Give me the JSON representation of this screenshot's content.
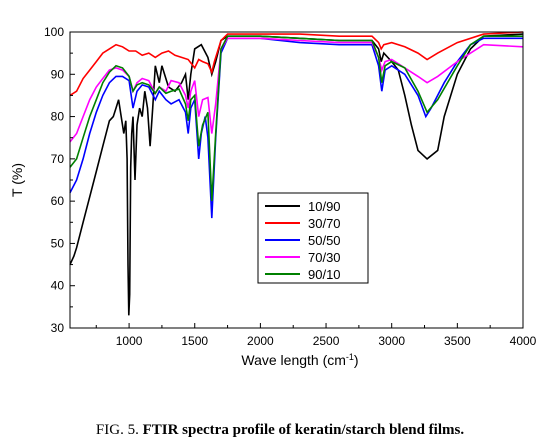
{
  "caption": {
    "prefix": "FIG. 5.",
    "title": "FTIR spectra profile of keratin/starch blend films."
  },
  "chart_data": {
    "type": "line",
    "xlabel": "Wave length (cm",
    "xlabel_sup": "-1",
    "xlabel_suffix": ")",
    "ylabel": "T (%)",
    "xlim": [
      550,
      4000
    ],
    "ylim": [
      30,
      100
    ],
    "xticks": [
      1000,
      1500,
      2000,
      2500,
      3000,
      3500,
      4000
    ],
    "yticks": [
      30,
      40,
      50,
      60,
      70,
      80,
      90,
      100
    ],
    "grid": false,
    "legend_position": "center",
    "series": [
      {
        "name": "10/90",
        "color": "#000000",
        "points": [
          [
            550,
            45
          ],
          [
            580,
            47
          ],
          [
            600,
            49
          ],
          [
            650,
            55
          ],
          [
            700,
            61
          ],
          [
            750,
            67
          ],
          [
            800,
            73
          ],
          [
            850,
            79
          ],
          [
            880,
            80
          ],
          [
            900,
            82
          ],
          [
            920,
            84
          ],
          [
            940,
            80
          ],
          [
            960,
            76
          ],
          [
            975,
            79
          ],
          [
            985,
            70
          ],
          [
            992,
            45
          ],
          [
            998,
            33
          ],
          [
            1005,
            38
          ],
          [
            1012,
            68
          ],
          [
            1020,
            76
          ],
          [
            1030,
            80
          ],
          [
            1045,
            65
          ],
          [
            1060,
            78
          ],
          [
            1080,
            82
          ],
          [
            1100,
            80
          ],
          [
            1120,
            86
          ],
          [
            1140,
            82
          ],
          [
            1160,
            73
          ],
          [
            1180,
            82
          ],
          [
            1200,
            92
          ],
          [
            1230,
            88
          ],
          [
            1250,
            92
          ],
          [
            1300,
            87
          ],
          [
            1350,
            86
          ],
          [
            1400,
            88
          ],
          [
            1430,
            90
          ],
          [
            1450,
            84
          ],
          [
            1470,
            90
          ],
          [
            1500,
            96
          ],
          [
            1550,
            97
          ],
          [
            1600,
            94
          ],
          [
            1630,
            90
          ],
          [
            1660,
            93
          ],
          [
            1700,
            98
          ],
          [
            1750,
            99
          ],
          [
            2000,
            99
          ],
          [
            2300,
            98.5
          ],
          [
            2600,
            98
          ],
          [
            2850,
            98
          ],
          [
            2900,
            96
          ],
          [
            2920,
            93
          ],
          [
            2940,
            95
          ],
          [
            3000,
            93
          ],
          [
            3050,
            91
          ],
          [
            3100,
            85
          ],
          [
            3150,
            78
          ],
          [
            3200,
            72
          ],
          [
            3270,
            70
          ],
          [
            3350,
            72
          ],
          [
            3400,
            80
          ],
          [
            3500,
            90
          ],
          [
            3600,
            96
          ],
          [
            3700,
            99
          ],
          [
            4000,
            99.5
          ]
        ]
      },
      {
        "name": "30/70",
        "color": "#ff0000",
        "points": [
          [
            550,
            85
          ],
          [
            600,
            86
          ],
          [
            650,
            89
          ],
          [
            700,
            91
          ],
          [
            750,
            93
          ],
          [
            800,
            95
          ],
          [
            850,
            96
          ],
          [
            900,
            97
          ],
          [
            950,
            96.5
          ],
          [
            1000,
            95.5
          ],
          [
            1050,
            95.5
          ],
          [
            1100,
            94.5
          ],
          [
            1150,
            95
          ],
          [
            1200,
            94
          ],
          [
            1250,
            95
          ],
          [
            1300,
            95.5
          ],
          [
            1350,
            94.5
          ],
          [
            1400,
            94
          ],
          [
            1450,
            93.5
          ],
          [
            1500,
            91.5
          ],
          [
            1530,
            93.5
          ],
          [
            1560,
            93
          ],
          [
            1600,
            92.5
          ],
          [
            1630,
            90.5
          ],
          [
            1650,
            93
          ],
          [
            1700,
            98
          ],
          [
            1750,
            99.5
          ],
          [
            2000,
            99.5
          ],
          [
            2300,
            99.5
          ],
          [
            2600,
            99
          ],
          [
            2850,
            99
          ],
          [
            2900,
            97.5
          ],
          [
            2920,
            96
          ],
          [
            2940,
            97
          ],
          [
            3000,
            97.5
          ],
          [
            3100,
            96.5
          ],
          [
            3200,
            95
          ],
          [
            3270,
            93.5
          ],
          [
            3350,
            95
          ],
          [
            3500,
            97.5
          ],
          [
            3700,
            99.5
          ],
          [
            4000,
            100
          ]
        ]
      },
      {
        "name": "50/50",
        "color": "#0000ff",
        "points": [
          [
            550,
            62
          ],
          [
            600,
            65
          ],
          [
            650,
            70
          ],
          [
            700,
            76
          ],
          [
            750,
            81
          ],
          [
            800,
            85
          ],
          [
            850,
            88
          ],
          [
            900,
            89.5
          ],
          [
            950,
            89.5
          ],
          [
            1000,
            88.5
          ],
          [
            1030,
            82
          ],
          [
            1060,
            86
          ],
          [
            1100,
            87.5
          ],
          [
            1150,
            87
          ],
          [
            1200,
            84
          ],
          [
            1230,
            86
          ],
          [
            1280,
            84
          ],
          [
            1320,
            83
          ],
          [
            1380,
            84
          ],
          [
            1430,
            81
          ],
          [
            1450,
            76
          ],
          [
            1470,
            82
          ],
          [
            1500,
            84
          ],
          [
            1530,
            70
          ],
          [
            1550,
            76
          ],
          [
            1580,
            80
          ],
          [
            1600,
            75
          ],
          [
            1630,
            56
          ],
          [
            1660,
            75
          ],
          [
            1700,
            95
          ],
          [
            1750,
            98.5
          ],
          [
            2000,
            98.5
          ],
          [
            2300,
            97.5
          ],
          [
            2600,
            97
          ],
          [
            2850,
            97
          ],
          [
            2900,
            92
          ],
          [
            2925,
            86
          ],
          [
            2950,
            91
          ],
          [
            3000,
            92
          ],
          [
            3100,
            90
          ],
          [
            3200,
            85
          ],
          [
            3260,
            80
          ],
          [
            3300,
            82
          ],
          [
            3400,
            88
          ],
          [
            3500,
            93
          ],
          [
            3600,
            97
          ],
          [
            3700,
            98.5
          ],
          [
            4000,
            98.5
          ]
        ]
      },
      {
        "name": "70/30",
        "color": "#ff00ff",
        "points": [
          [
            550,
            74
          ],
          [
            600,
            76
          ],
          [
            650,
            80
          ],
          [
            700,
            84
          ],
          [
            750,
            87
          ],
          [
            800,
            89
          ],
          [
            850,
            91
          ],
          [
            900,
            91.5
          ],
          [
            950,
            91
          ],
          [
            1000,
            89.5
          ],
          [
            1030,
            86
          ],
          [
            1060,
            88
          ],
          [
            1100,
            89
          ],
          [
            1150,
            88.5
          ],
          [
            1200,
            85.5
          ],
          [
            1230,
            87
          ],
          [
            1280,
            86
          ],
          [
            1320,
            88.5
          ],
          [
            1380,
            88
          ],
          [
            1430,
            85
          ],
          [
            1450,
            82
          ],
          [
            1470,
            86
          ],
          [
            1500,
            88.5
          ],
          [
            1530,
            80
          ],
          [
            1560,
            84
          ],
          [
            1600,
            84.5
          ],
          [
            1630,
            76
          ],
          [
            1660,
            83
          ],
          [
            1700,
            96
          ],
          [
            1750,
            98.5
          ],
          [
            2000,
            98.5
          ],
          [
            2300,
            98
          ],
          [
            2600,
            97.5
          ],
          [
            2850,
            97.5
          ],
          [
            2900,
            94
          ],
          [
            2925,
            91
          ],
          [
            2950,
            93
          ],
          [
            3000,
            93.5
          ],
          [
            3100,
            91.5
          ],
          [
            3200,
            89.5
          ],
          [
            3270,
            88
          ],
          [
            3350,
            89.5
          ],
          [
            3500,
            93
          ],
          [
            3700,
            97
          ],
          [
            4000,
            96.5
          ]
        ]
      },
      {
        "name": "90/10",
        "color": "#008000",
        "points": [
          [
            550,
            68
          ],
          [
            600,
            70
          ],
          [
            650,
            75
          ],
          [
            700,
            80
          ],
          [
            750,
            84
          ],
          [
            800,
            88
          ],
          [
            850,
            90.5
          ],
          [
            900,
            92
          ],
          [
            950,
            91.5
          ],
          [
            1000,
            89.5
          ],
          [
            1030,
            86
          ],
          [
            1060,
            87.5
          ],
          [
            1100,
            88
          ],
          [
            1150,
            87.5
          ],
          [
            1200,
            85.5
          ],
          [
            1230,
            87
          ],
          [
            1280,
            85.5
          ],
          [
            1320,
            86
          ],
          [
            1380,
            86.5
          ],
          [
            1430,
            83
          ],
          [
            1450,
            79
          ],
          [
            1470,
            84
          ],
          [
            1500,
            85
          ],
          [
            1530,
            73
          ],
          [
            1560,
            78
          ],
          [
            1600,
            81
          ],
          [
            1630,
            60
          ],
          [
            1660,
            76
          ],
          [
            1700,
            96
          ],
          [
            1750,
            99
          ],
          [
            2000,
            99
          ],
          [
            2300,
            98.5
          ],
          [
            2600,
            98
          ],
          [
            2850,
            98
          ],
          [
            2900,
            94
          ],
          [
            2925,
            88
          ],
          [
            2950,
            92
          ],
          [
            3000,
            93
          ],
          [
            3100,
            91.5
          ],
          [
            3200,
            86
          ],
          [
            3270,
            81
          ],
          [
            3350,
            84
          ],
          [
            3500,
            92
          ],
          [
            3600,
            97
          ],
          [
            3700,
            99
          ],
          [
            4000,
            99
          ]
        ]
      }
    ]
  }
}
